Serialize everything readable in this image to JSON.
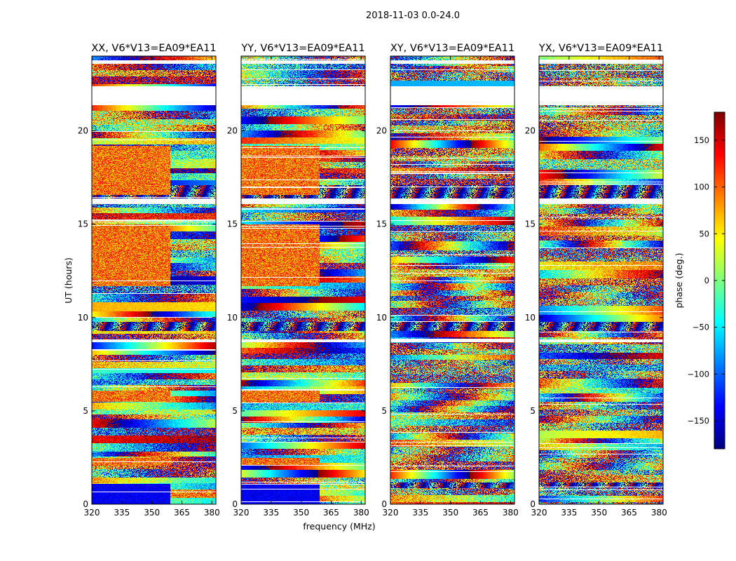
{
  "figure_title": "2018-11-03 0.0-24.0",
  "chart_data": {
    "type": "heatmap",
    "suptitle": "2018-11-03 0.0-24.0",
    "shared_xlabel": "frequency (MHz)",
    "shared_ylabel": "UT (hours)",
    "xlim": [
      320,
      382
    ],
    "ylim": [
      0,
      24
    ],
    "xticks": [
      320,
      335,
      350,
      365,
      380
    ],
    "yticks": [
      0,
      5,
      10,
      15,
      20
    ],
    "panels": [
      {
        "title": "XX, V6*V13=EA09*EA11",
        "pol": "XX"
      },
      {
        "title": "YY, V6*V13=EA09*EA11",
        "pol": "YY"
      },
      {
        "title": "XY, V6*V13=EA09*EA11",
        "pol": "XY"
      },
      {
        "title": "YX, V6*V13=EA09*EA11",
        "pol": "YX"
      }
    ],
    "colorbar": {
      "label": "phase (deg.)",
      "range": [
        -180,
        180
      ],
      "ticks": [
        150,
        100,
        50,
        0,
        -50,
        -100,
        -150
      ],
      "tick_labels": [
        "150",
        "100",
        "50",
        "0",
        "−50",
        "−100",
        "−150"
      ],
      "colormap": "jet"
    },
    "data_gaps_hours": [
      [
        21.4,
        22.4
      ],
      [
        16.1,
        16.4
      ],
      [
        23.6,
        23.8
      ],
      [
        8.7,
        8.85
      ]
    ]
  }
}
